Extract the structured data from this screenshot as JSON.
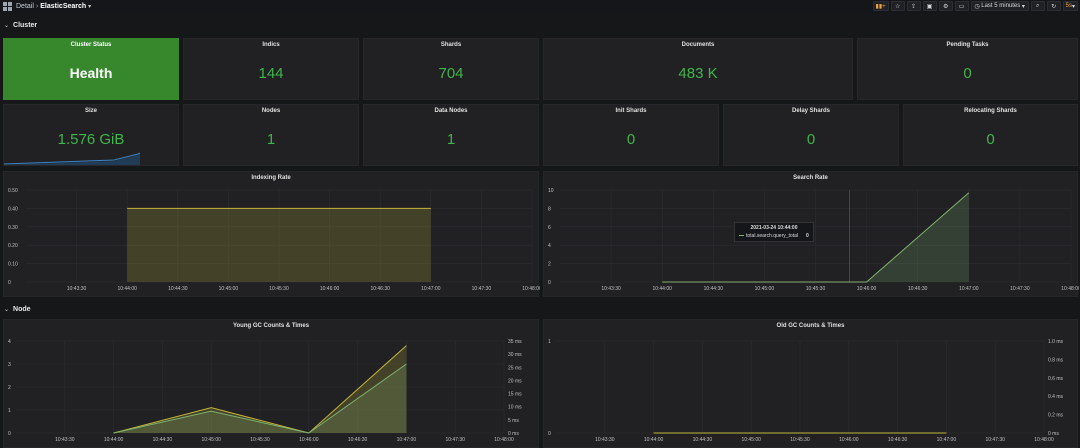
{
  "header": {
    "breadcrumb_parent": "Detail",
    "breadcrumb_sep": "›",
    "dashboard_title": "ElasticSearch",
    "time_range": "Last 5 minutes",
    "refresh_label": "5s"
  },
  "rows": {
    "cluster": "Cluster",
    "node": "Node"
  },
  "stats": {
    "cluster_status": {
      "title": "Cluster Status",
      "value": "Health"
    },
    "indics": {
      "title": "Indics",
      "value": "144"
    },
    "shards": {
      "title": "Shards",
      "value": "704"
    },
    "documents": {
      "title": "Documents",
      "value": "483 K"
    },
    "pending_tasks": {
      "title": "Pending Tasks",
      "value": "0"
    },
    "size": {
      "title": "Size",
      "value": "1.576 GiB"
    },
    "nodes": {
      "title": "Nodes",
      "value": "1"
    },
    "data_nodes": {
      "title": "Data Nodes",
      "value": "1"
    },
    "init_shards": {
      "title": "Init Shards",
      "value": "0"
    },
    "delay_shards": {
      "title": "Delay Shards",
      "value": "0"
    },
    "relocating_shards": {
      "title": "Relocating Shards",
      "value": "0"
    }
  },
  "colors": {
    "accent_green": "#3fb54a",
    "health_bg": "#37872d",
    "series_yellow": "#c4b53a",
    "series_green": "#7eb26d",
    "annotation_red": "#c4162a"
  },
  "tooltip": {
    "title": "2021-03-24 10:44:00",
    "series": "total.search.query_total",
    "value": "0"
  },
  "chart_data": [
    {
      "id": "indexing_rate",
      "type": "area",
      "title": "Indexing Rate",
      "x_ticks": [
        "10:43:30",
        "10:44:00",
        "10:44:30",
        "10:45:00",
        "10:45:30",
        "10:46:00",
        "10:46:30",
        "10:47:00",
        "10:47:30",
        "10:48:00"
      ],
      "y_ticks": [
        "0",
        "0.10",
        "0.20",
        "0.30",
        "0.40",
        "0.50"
      ],
      "ylim": [
        0,
        0.5
      ],
      "series": [
        {
          "x": [
            "10:44:00",
            "10:47:00"
          ],
          "values": [
            0.4,
            0.4
          ],
          "color": "#c4b53a"
        }
      ]
    },
    {
      "id": "search_rate",
      "type": "area",
      "title": "Search Rate",
      "x_ticks": [
        "10:43:30",
        "10:44:00",
        "10:44:30",
        "10:45:00",
        "10:45:30",
        "10:46:00",
        "10:46:30",
        "10:47:00",
        "10:47:30",
        "10:48:00"
      ],
      "y_ticks": [
        "0",
        "2",
        "4",
        "6",
        "8",
        "10"
      ],
      "ylim": [
        0,
        10
      ],
      "series": [
        {
          "x": [
            "10:44:00",
            "10:46:00",
            "10:47:00"
          ],
          "values": [
            0,
            0,
            9.7
          ],
          "color": "#7eb26d"
        }
      ],
      "annotation_x": "10:45:50"
    },
    {
      "id": "young_gc",
      "type": "area",
      "title": "Young GC Counts & Times",
      "x_ticks": [
        "10:43:30",
        "10:44:00",
        "10:44:30",
        "10:45:00",
        "10:45:30",
        "10:46:00",
        "10:46:30",
        "10:47:00",
        "10:47:30",
        "10:48:00"
      ],
      "y_ticks": [
        "0",
        "1",
        "2",
        "3",
        "4"
      ],
      "y2_ticks": [
        "0 ms",
        "5 ms",
        "10 ms",
        "15 ms",
        "20 ms",
        "25 ms",
        "30 ms",
        "35 ms"
      ],
      "ylim": [
        0,
        4
      ],
      "y2lim": [
        0,
        35
      ],
      "series": [
        {
          "x": [
            "10:44:00",
            "10:45:00",
            "10:46:00",
            "10:47:00"
          ],
          "values": [
            0,
            1.1,
            0,
            3.8
          ],
          "color": "#c4b53a"
        },
        {
          "x": [
            "10:44:00",
            "10:45:00",
            "10:46:00",
            "10:47:00"
          ],
          "values": [
            0,
            0.95,
            0,
            3.0
          ],
          "color": "#7eb26d"
        }
      ]
    },
    {
      "id": "old_gc",
      "type": "line",
      "title": "Old GC Counts & Times",
      "x_ticks": [
        "10:43:30",
        "10:44:00",
        "10:44:30",
        "10:45:00",
        "10:45:30",
        "10:46:00",
        "10:46:30",
        "10:47:00",
        "10:47:30",
        "10:48:00"
      ],
      "y_ticks": [
        "0",
        "1"
      ],
      "y2_ticks": [
        "0 ms",
        "0.2 ms",
        "0.4 ms",
        "0.6 ms",
        "0.8 ms",
        "1.0 ms"
      ],
      "ylim": [
        0,
        1
      ],
      "y2lim": [
        0,
        1
      ],
      "series": [
        {
          "x": [
            "10:44:00",
            "10:47:00"
          ],
          "values": [
            0,
            0
          ],
          "color": "#c4b53a"
        }
      ]
    }
  ]
}
